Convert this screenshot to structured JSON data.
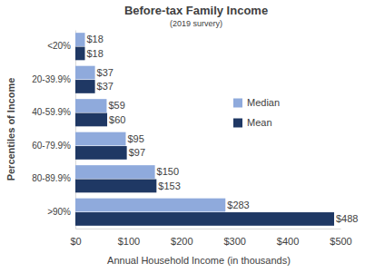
{
  "chart_data": {
    "type": "bar",
    "orientation": "horizontal",
    "title": "Before-tax Family Income",
    "subtitle": "(2019 survery)",
    "x_label": "Annual Household Income (in thousands)",
    "y_label": "Percentiles of Income",
    "categories": [
      "<20%",
      "20-39.9%",
      "40-59.9%",
      "60-79.9%",
      "80-89.9%",
      ">90%"
    ],
    "series": [
      {
        "name": "Median",
        "color": "#8FAADC",
        "values": [
          18,
          37,
          59,
          95,
          150,
          283
        ],
        "value_labels": [
          "$18",
          "$37",
          "$59",
          "$95",
          "$150",
          "$283"
        ]
      },
      {
        "name": "Mean",
        "color": "#1F3864",
        "values": [
          18,
          37,
          60,
          97,
          153,
          488
        ],
        "value_labels": [
          "$18",
          "$37",
          "$60",
          "$97",
          "$153",
          "$488"
        ]
      }
    ],
    "xlim": [
      0,
      500
    ],
    "xticks": [
      {
        "value": 0,
        "label": "$0"
      },
      {
        "value": 100,
        "label": "$100"
      },
      {
        "value": 200,
        "label": "$200"
      },
      {
        "value": 300,
        "label": "$300"
      },
      {
        "value": 400,
        "label": "$400"
      },
      {
        "value": 500,
        "label": "$500"
      }
    ],
    "grid": false,
    "legend": "right",
    "data_labels": true
  }
}
